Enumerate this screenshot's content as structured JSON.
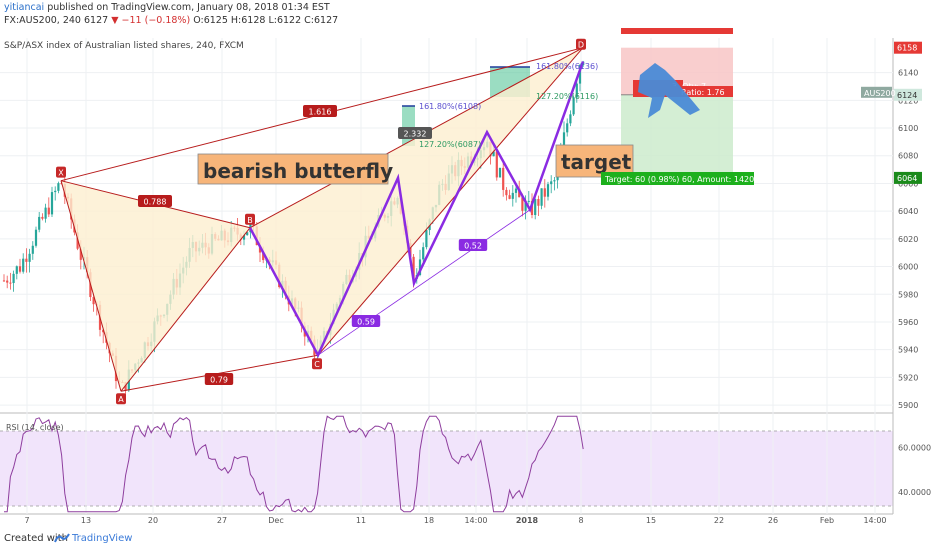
{
  "header": {
    "user": "yitiancai",
    "published": "published on TradingView.com, January 08, 2018 01:34 EST",
    "symbol": "FX:AUS200, 240",
    "last": "6127",
    "change": "▼ −11 (−0.18%)",
    "ohlc": "O:6125 H:6128 L:6122 C:6127",
    "title": "S&P/ASX index of Australian listed shares, 240, FXCM"
  },
  "footer": {
    "created_with": "Created with",
    "brand": "TradingView"
  },
  "chart_data": [
    {
      "type": "candlestick",
      "title": "S&P/ASX index of Australian listed shares, 240, FXCM",
      "ylim": [
        5895,
        6165
      ],
      "y_ticks": [
        "6158",
        "6140",
        "6124",
        "6120",
        "6100",
        "6080",
        "6064",
        "6060",
        "6040",
        "6020",
        "6000",
        "5980",
        "5960",
        "5940",
        "5920",
        "5900"
      ],
      "x_ticks": [
        "7",
        "13",
        "20",
        "27",
        "Dec",
        "11",
        "18",
        "14:00",
        "2018",
        "8",
        "15",
        "22",
        "26",
        "Feb",
        "14:00"
      ],
      "price_tag": "AUS200",
      "pattern": {
        "X": {
          "label": "X",
          "price": 6062
        },
        "A": {
          "label": "A",
          "price": 5910
        },
        "B": {
          "label": "B",
          "price": 6028
        },
        "C": {
          "label": "C",
          "price": 5936
        },
        "D": {
          "label": "D",
          "price": 6158
        },
        "ratios": [
          "1.616",
          "0.788",
          "0.79",
          "0.59",
          "0.52",
          "2.332"
        ]
      },
      "fib_levels": [
        "161.80%(6136)",
        "127.20%(6116)",
        "161.80%(6108)",
        "127.20%(6087)"
      ],
      "annotations": {
        "pattern_name": "bearish butterfly",
        "target_label": "target",
        "position_line1": "3, Qty: 7",
        "position_line2": "Ratio: 1.76",
        "target_box": "Target: 60 (0.98%) 60, Amount: 1420"
      },
      "price_labels": {
        "stop": "6158",
        "current": "6124",
        "target": "6064"
      },
      "colors": {
        "up": "#26a69a",
        "down": "#ef5350",
        "pattern": "#b71c1c",
        "fill": "#fcefd0",
        "purple": "#8a2be2",
        "stop_zone": "#f8c6c6",
        "target_zone": "#cdebcd",
        "target_box": "#1db01d",
        "label_box": "#f7b57a"
      }
    },
    {
      "type": "line",
      "title": "RSI (14, close)",
      "ylim": [
        30,
        75
      ],
      "y_ticks": [
        "60.0000",
        "40.0000"
      ],
      "bands": [
        70,
        30
      ]
    }
  ]
}
